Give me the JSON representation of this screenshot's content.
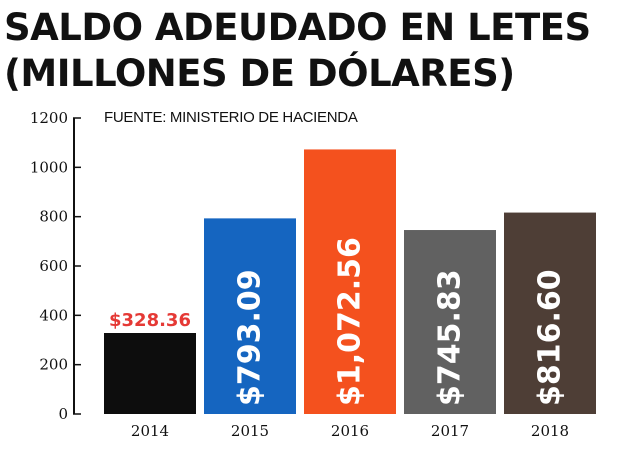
{
  "title_line1": "SALDO ADEUDADO EN LETES",
  "title_line2": "(MILLONES DE DÓLARES)",
  "source": "FUENTE: MINISTERIO DE HACIENDA",
  "colors": {
    "bars": [
      "#0d0d0d",
      "#1565c0",
      "#f4511e",
      "#616161",
      "#4e3e36"
    ],
    "first_label": "#e53935",
    "axis": "#111111"
  },
  "chart_data": {
    "type": "bar",
    "title": "SALDO ADEUDADO EN LETES (MILLONES DE DÓLARES)",
    "categories": [
      "2014",
      "2015",
      "2016",
      "2017",
      "2018"
    ],
    "values": [
      328.36,
      793.09,
      1072.56,
      745.83,
      816.6
    ],
    "data_labels": [
      "$328.36",
      "$793.09",
      "$1,072.56",
      "$745.83",
      "$816.60"
    ],
    "yticks": [
      "0",
      "200",
      "400",
      "600",
      "800",
      "1000",
      "1200"
    ],
    "ylim": [
      0,
      1200
    ],
    "xlabel": "",
    "ylabel": "",
    "grid": false,
    "legend": "none"
  }
}
